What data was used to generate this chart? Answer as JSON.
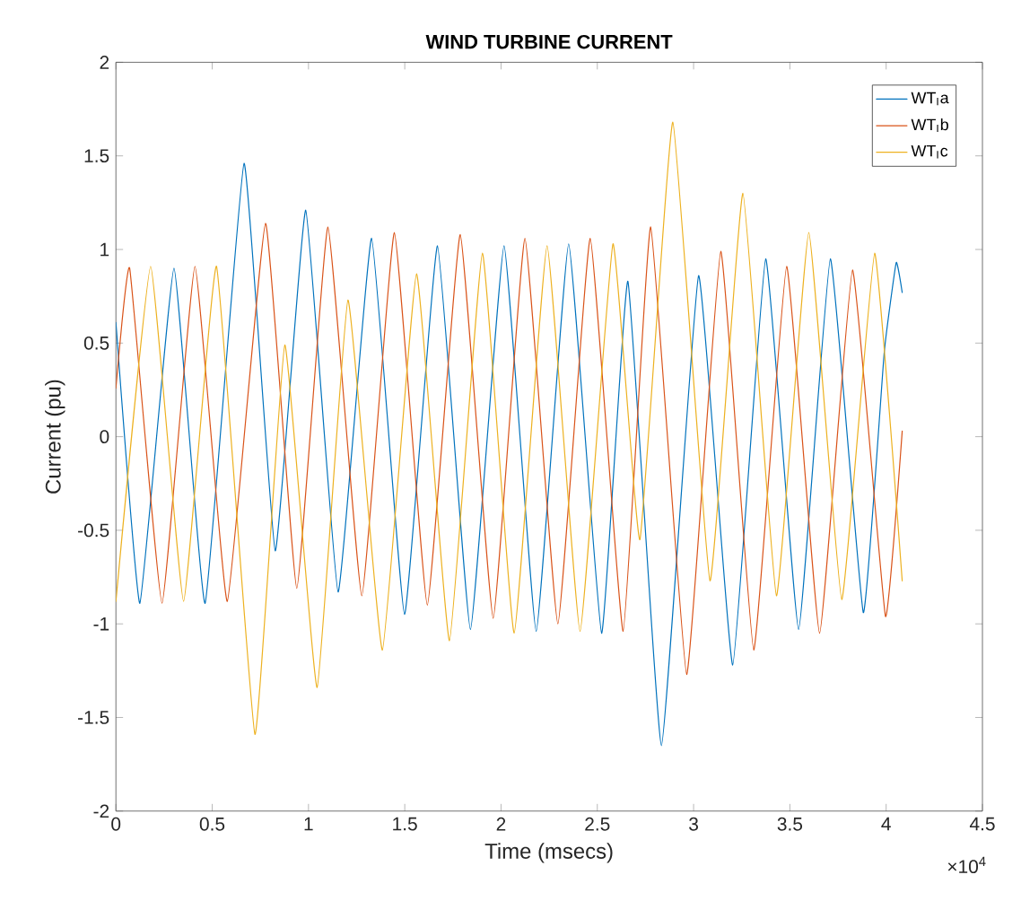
{
  "chart_data": {
    "type": "line",
    "title": "WIND TURBINE CURRENT",
    "xlabel": "Time (msecs)",
    "ylabel": "Current (pu)",
    "xlim": [
      0,
      4.5
    ],
    "ylim": [
      -2,
      2
    ],
    "xticks": [
      0,
      0.5,
      1,
      1.5,
      2,
      2.5,
      3,
      3.5,
      4,
      4.5
    ],
    "yticks": [
      -2,
      -1.5,
      -1,
      -0.5,
      0,
      0.5,
      1,
      1.5,
      2
    ],
    "legend": "top right",
    "line_style": "solid",
    "annotations": [
      "×10$^{4}$"
    ],
    "series": [
      {
        "name": "WT$_{I}$a",
        "color": "#0072bd",
        "x": [
          0,
          0.1244,
          0.3017,
          0.4634,
          0.6655,
          0.8273,
          0.9859,
          1.1538,
          1.328,
          1.499,
          1.6701,
          1.8411,
          2.0157,
          2.1826,
          2.3512,
          2.5222,
          2.659,
          2.833,
          3.026,
          3.2033,
          3.3744,
          3.5454,
          3.7102,
          3.8813,
          3.99,
          4.0523,
          4.0834
        ],
        "values": [
          0.61,
          -0.89,
          0.9,
          -0.89,
          1.46,
          -0.61,
          1.21,
          -0.83,
          1.06,
          -0.95,
          1.02,
          -1.03,
          1.02,
          -1.04,
          1.03,
          -1.05,
          0.83,
          -1.65,
          0.86,
          -1.22,
          0.95,
          -1.03,
          0.95,
          -0.94,
          0.45,
          0.93,
          0.77
        ]
      },
      {
        "name": "WT$_{I}$b",
        "color": "#d95319",
        "x": [
          0,
          0.0715,
          0.2395,
          0.4105,
          0.5785,
          0.777,
          0.9393,
          1.101,
          1.277,
          1.4462,
          1.6172,
          1.7883,
          1.9593,
          2.1241,
          2.2952,
          2.4632,
          2.6342,
          2.7772,
          2.9639,
          3.1411,
          3.3122,
          3.4832,
          3.6543,
          3.8253,
          3.9964,
          4.0834
        ],
        "values": [
          0.26,
          0.9,
          -0.89,
          0.91,
          -0.88,
          1.14,
          -0.81,
          1.12,
          -0.85,
          1.09,
          -0.9,
          1.08,
          -0.97,
          1.06,
          -1.0,
          1.06,
          -1.04,
          1.12,
          -1.27,
          0.99,
          -1.14,
          0.91,
          -1.05,
          0.89,
          -0.96,
          0.03
        ]
      },
      {
        "name": "WT$_{I}$c",
        "color": "#edb120",
        "x": [
          0,
          0.1804,
          0.3514,
          0.5225,
          0.722,
          0.877,
          1.045,
          1.205,
          1.384,
          1.5613,
          1.7323,
          1.9034,
          2.0682,
          2.2392,
          2.4103,
          2.5813,
          2.7213,
          2.8923,
          3.0852,
          3.2562,
          3.4303,
          3.5983,
          3.7693,
          3.9404,
          4.0834
        ],
        "values": [
          -0.88,
          0.91,
          -0.88,
          0.91,
          -1.59,
          0.49,
          -1.34,
          0.73,
          -1.14,
          0.87,
          -1.09,
          0.98,
          -1.05,
          1.02,
          -1.04,
          1.03,
          -0.55,
          1.68,
          -0.77,
          1.3,
          -0.85,
          1.09,
          -0.87,
          0.98,
          -0.77
        ]
      }
    ]
  }
}
